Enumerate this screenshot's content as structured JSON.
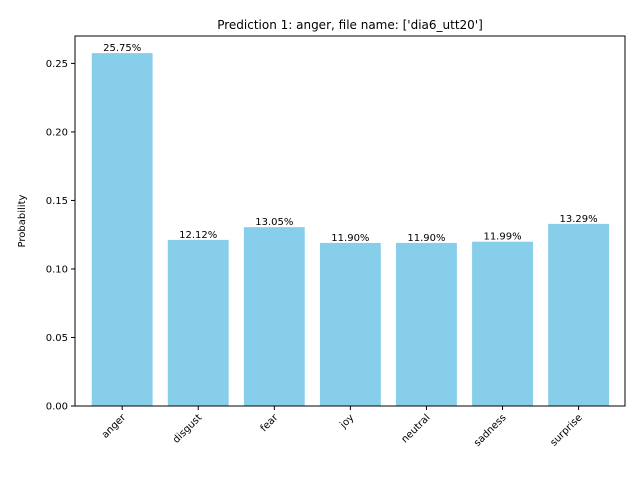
{
  "chart_data": {
    "type": "bar",
    "title": "Prediction 1: anger, file name: ['dia6_utt20']",
    "xlabel": "",
    "ylabel": "Probability",
    "categories": [
      "anger",
      "disgust",
      "fear",
      "joy",
      "neutral",
      "sadness",
      "surprise"
    ],
    "values": [
      0.2575,
      0.1212,
      0.1305,
      0.119,
      0.119,
      0.1199,
      0.1329
    ],
    "data_labels": [
      "25.75%",
      "12.12%",
      "13.05%",
      "11.90%",
      "11.90%",
      "11.99%",
      "13.29%"
    ],
    "ylim": [
      0,
      0.27
    ],
    "yticks": [
      0.0,
      0.05,
      0.1,
      0.15,
      0.2,
      0.25
    ],
    "ytick_labels": [
      "0.00",
      "0.05",
      "0.10",
      "0.15",
      "0.20",
      "0.25"
    ],
    "xtick_rotation_deg": 45,
    "grid": false,
    "legend": "none",
    "bar_color": "#87CEEB"
  }
}
